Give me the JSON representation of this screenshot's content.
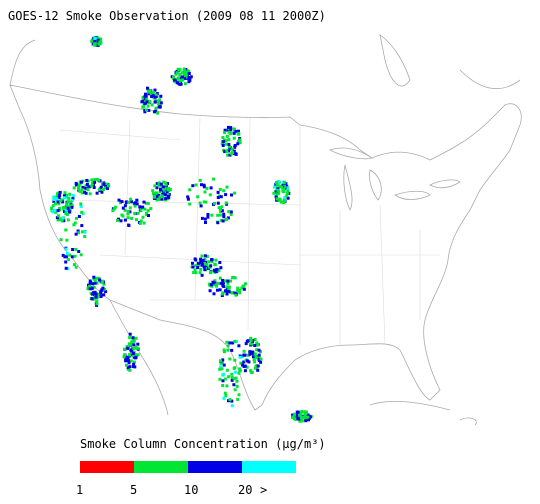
{
  "title": "GOES-12 Smoke Observation (2009 08 11  2000Z)",
  "legend": {
    "title": "Smoke Column Concentration (μg/m³)",
    "colors": [
      "#ff0000",
      "#00e632",
      "#0000e6",
      "#00ffff"
    ],
    "labels": [
      "1",
      "5",
      "10",
      "20",
      ">"
    ]
  }
}
